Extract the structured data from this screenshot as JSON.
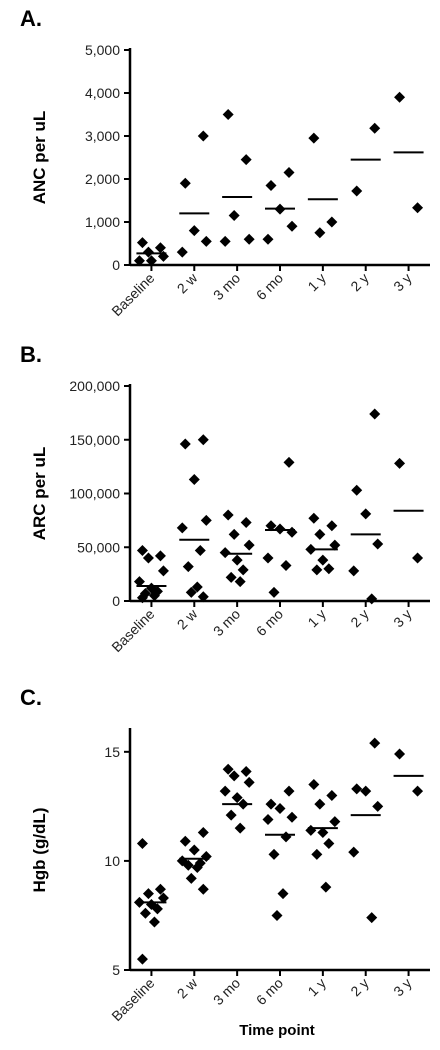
{
  "xlabel": "Time point",
  "chart_data": [
    {
      "type": "scatter",
      "panel_label": "A.",
      "ylabel": "ANC per uL",
      "categories": [
        "Baseline",
        "2 w",
        "3 mo",
        "6 mo",
        "1 y",
        "2 y",
        "3 y"
      ],
      "ylim": [
        0,
        5000
      ],
      "yticks": [
        0,
        1000,
        2000,
        3000,
        4000,
        5000
      ],
      "ytick_labels": [
        "0",
        "1,000",
        "2,000",
        "3,000",
        "4,000",
        "5,000"
      ],
      "grid": false,
      "points": [
        [
          520,
          400,
          300,
          200,
          100,
          100
        ],
        [
          3000,
          1900,
          800,
          550,
          300
        ],
        [
          3500,
          2450,
          1150,
          600,
          550
        ],
        [
          2150,
          1850,
          1300,
          900,
          600
        ],
        [
          2950,
          1000,
          750
        ],
        [
          3180,
          1720
        ],
        [
          3900,
          1330
        ]
      ],
      "means": [
        270,
        1200,
        1580,
        1310,
        1530,
        2450,
        2620
      ]
    },
    {
      "type": "scatter",
      "panel_label": "B.",
      "ylabel": "ARC per uL",
      "categories": [
        "Baseline",
        "2 w",
        "3 mo",
        "6 mo",
        "1 y",
        "2 y",
        "3 y"
      ],
      "ylim": [
        0,
        200000
      ],
      "yticks": [
        0,
        50000,
        100000,
        150000,
        200000
      ],
      "ytick_labels": [
        "0",
        "50,000",
        "100,000",
        "150,000",
        "200,000"
      ],
      "grid": false,
      "points": [
        [
          47000,
          42000,
          40000,
          28000,
          18000,
          12000,
          9000,
          7000,
          5000,
          3000
        ],
        [
          150000,
          146000,
          113000,
          75000,
          68000,
          47000,
          32000,
          13000,
          8000,
          4000
        ],
        [
          80000,
          73000,
          62000,
          52000,
          45000,
          38000,
          29000,
          22000,
          18000
        ],
        [
          129000,
          70000,
          67000,
          64000,
          40000,
          33000,
          8000
        ],
        [
          77000,
          70000,
          62000,
          52000,
          48000,
          38000,
          30000,
          29000
        ],
        [
          174000,
          103000,
          81000,
          53000,
          28000,
          2000
        ],
        [
          128000,
          40000
        ]
      ],
      "means": [
        14000,
        57000,
        44000,
        66000,
        48000,
        62000,
        84000
      ]
    },
    {
      "type": "scatter",
      "panel_label": "C.",
      "ylabel": "Hgb (g/dL)",
      "categories": [
        "Baseline",
        "2 w",
        "3 mo",
        "6 mo",
        "1 y",
        "2 y",
        "3 y"
      ],
      "ylim": [
        5,
        16
      ],
      "yticks": [
        5,
        10,
        15
      ],
      "ytick_labels": [
        "5",
        "10",
        "15"
      ],
      "grid": false,
      "points": [
        [
          10.8,
          8.7,
          8.5,
          8.3,
          8.1,
          8.0,
          7.8,
          7.6,
          7.2,
          5.5
        ],
        [
          11.3,
          10.9,
          10.5,
          10.2,
          10.0,
          9.9,
          9.8,
          9.7,
          9.2,
          8.7
        ],
        [
          14.2,
          14.1,
          13.9,
          13.6,
          13.2,
          12.9,
          12.6,
          12.1,
          11.5
        ],
        [
          13.2,
          12.6,
          12.4,
          12.0,
          11.9,
          11.1,
          10.3,
          8.5,
          7.5
        ],
        [
          13.5,
          13.0,
          12.6,
          11.8,
          11.4,
          11.3,
          10.8,
          10.3,
          8.8
        ],
        [
          15.4,
          13.3,
          13.2,
          12.5,
          10.4,
          7.4
        ],
        [
          14.9,
          13.2
        ]
      ],
      "means": [
        8.1,
        10.1,
        12.6,
        11.2,
        11.5,
        12.1,
        13.9
      ]
    }
  ]
}
